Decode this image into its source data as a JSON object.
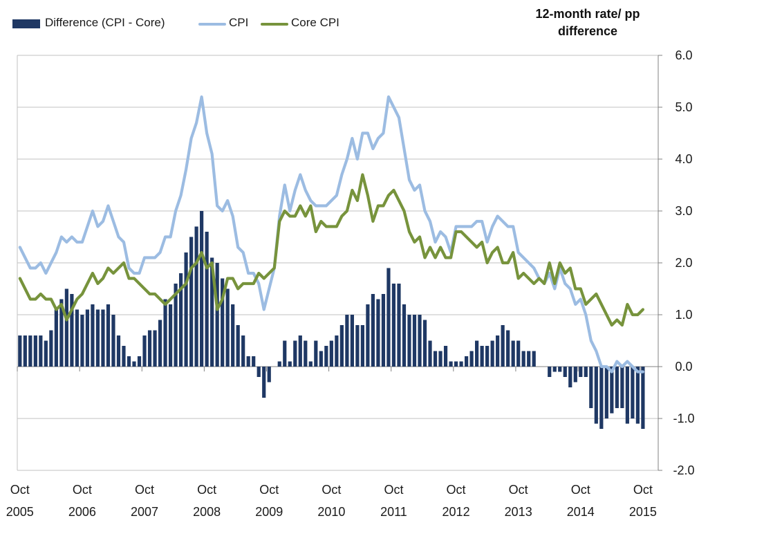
{
  "title": {
    "line1": "12-month rate/ pp",
    "line2": "difference"
  },
  "legend": {
    "items": [
      {
        "label": "Difference (CPI - Core)",
        "type": "bar",
        "color": "#1f3864"
      },
      {
        "label": "CPI",
        "type": "line",
        "color": "#9cbce2"
      },
      {
        "label": "Core CPI",
        "type": "line",
        "color": "#77933c"
      }
    ]
  },
  "colors": {
    "bar": "#1f3864",
    "cpi_line": "#9cbce2",
    "core_line": "#77933c",
    "gridline": "#c2c2c2",
    "axis": "#808080",
    "text": "#1a1a1a"
  },
  "chart_data": {
    "type": "bar",
    "subtype": "combo bar + 2 lines, monthly series Oct 2005 - Oct 2015",
    "title": "12-month rate/ pp difference",
    "xlabel": "",
    "ylabel": "12-month rate/ pp difference",
    "ylim": [
      -2.0,
      6.0
    ],
    "y_ticks": [
      6.0,
      5.0,
      4.0,
      3.0,
      2.0,
      1.0,
      0.0,
      -1.0,
      -2.0
    ],
    "grid": true,
    "legend_position": "top-left",
    "x_start": "Oct 2005",
    "x_end": "Oct 2015",
    "x_tick_labels": [
      {
        "month": "Oct",
        "year": "2005"
      },
      {
        "month": "Oct",
        "year": "2006"
      },
      {
        "month": "Oct",
        "year": "2007"
      },
      {
        "month": "Oct",
        "year": "2008"
      },
      {
        "month": "Oct",
        "year": "2009"
      },
      {
        "month": "Oct",
        "year": "2010"
      },
      {
        "month": "Oct",
        "year": "2011"
      },
      {
        "month": "Oct",
        "year": "2012"
      },
      {
        "month": "Oct",
        "year": "2013"
      },
      {
        "month": "Oct",
        "year": "2014"
      },
      {
        "month": "Oct",
        "year": "2015"
      }
    ],
    "series": [
      {
        "name": "Difference (CPI - Core)",
        "type": "bar",
        "color": "#1f3864",
        "values": [
          0.6,
          0.6,
          0.6,
          0.6,
          0.6,
          0.5,
          0.7,
          1.1,
          1.3,
          1.5,
          1.4,
          1.1,
          1.0,
          1.1,
          1.2,
          1.1,
          1.1,
          1.2,
          1.0,
          0.6,
          0.4,
          0.2,
          0.1,
          0.2,
          0.6,
          0.7,
          0.7,
          0.9,
          1.3,
          1.2,
          1.6,
          1.8,
          2.2,
          2.5,
          2.7,
          3.0,
          2.6,
          2.1,
          2.0,
          1.7,
          1.5,
          1.2,
          0.8,
          0.6,
          0.2,
          0.2,
          -0.2,
          -0.6,
          -0.3,
          0.0,
          0.1,
          0.5,
          0.1,
          0.5,
          0.6,
          0.5,
          0.1,
          0.5,
          0.3,
          0.4,
          0.5,
          0.6,
          0.8,
          1.0,
          1.0,
          0.8,
          0.8,
          1.2,
          1.4,
          1.3,
          1.4,
          1.9,
          1.6,
          1.6,
          1.2,
          1.0,
          1.0,
          1.0,
          0.9,
          0.5,
          0.3,
          0.3,
          0.4,
          0.1,
          0.1,
          0.1,
          0.2,
          0.3,
          0.5,
          0.4,
          0.4,
          0.5,
          0.6,
          0.8,
          0.7,
          0.5,
          0.5,
          0.3,
          0.3,
          0.3,
          0.0,
          0.0,
          -0.2,
          -0.1,
          -0.1,
          -0.2,
          -0.4,
          -0.3,
          -0.2,
          -0.2,
          -0.8,
          -1.1,
          -1.2,
          -1.0,
          -0.9,
          -0.8,
          -0.8,
          -1.1,
          -1.0,
          -1.1,
          -1.2
        ]
      },
      {
        "name": "CPI",
        "type": "line",
        "color": "#9cbce2",
        "values": [
          2.3,
          2.1,
          1.9,
          1.9,
          2.0,
          1.8,
          2.0,
          2.2,
          2.5,
          2.4,
          2.5,
          2.4,
          2.4,
          2.7,
          3.0,
          2.7,
          2.8,
          3.1,
          2.8,
          2.5,
          2.4,
          1.9,
          1.8,
          1.8,
          2.1,
          2.1,
          2.1,
          2.2,
          2.5,
          2.5,
          3.0,
          3.3,
          3.8,
          4.4,
          4.7,
          5.2,
          4.5,
          4.1,
          3.1,
          3.0,
          3.2,
          2.9,
          2.3,
          2.2,
          1.8,
          1.8,
          1.6,
          1.1,
          1.5,
          1.9,
          2.9,
          3.5,
          3.0,
          3.4,
          3.7,
          3.4,
          3.2,
          3.1,
          3.1,
          3.1,
          3.2,
          3.3,
          3.7,
          4.0,
          4.4,
          4.0,
          4.5,
          4.5,
          4.2,
          4.4,
          4.5,
          5.2,
          5.0,
          4.8,
          4.2,
          3.6,
          3.4,
          3.5,
          3.0,
          2.8,
          2.4,
          2.6,
          2.5,
          2.2,
          2.7,
          2.7,
          2.7,
          2.7,
          2.8,
          2.8,
          2.4,
          2.7,
          2.9,
          2.8,
          2.7,
          2.7,
          2.2,
          2.1,
          2.0,
          1.9,
          1.7,
          1.6,
          1.8,
          1.5,
          1.9,
          1.6,
          1.5,
          1.2,
          1.3,
          1.0,
          0.5,
          0.3,
          0.0,
          0.0,
          -0.1,
          0.1,
          0.0,
          0.1,
          0.0,
          -0.1,
          -0.1
        ]
      },
      {
        "name": "Core CPI",
        "type": "line",
        "color": "#77933c",
        "values": [
          1.7,
          1.5,
          1.3,
          1.3,
          1.4,
          1.3,
          1.3,
          1.1,
          1.2,
          0.9,
          1.1,
          1.3,
          1.4,
          1.6,
          1.8,
          1.6,
          1.7,
          1.9,
          1.8,
          1.9,
          2.0,
          1.7,
          1.7,
          1.6,
          1.5,
          1.4,
          1.4,
          1.3,
          1.2,
          1.3,
          1.4,
          1.5,
          1.6,
          1.9,
          2.0,
          2.2,
          1.9,
          2.0,
          1.1,
          1.3,
          1.7,
          1.7,
          1.5,
          1.6,
          1.6,
          1.6,
          1.8,
          1.7,
          1.8,
          1.9,
          2.8,
          3.0,
          2.9,
          2.9,
          3.1,
          2.9,
          3.1,
          2.6,
          2.8,
          2.7,
          2.7,
          2.7,
          2.9,
          3.0,
          3.4,
          3.2,
          3.7,
          3.3,
          2.8,
          3.1,
          3.1,
          3.3,
          3.4,
          3.2,
          3.0,
          2.6,
          2.4,
          2.5,
          2.1,
          2.3,
          2.1,
          2.3,
          2.1,
          2.1,
          2.6,
          2.6,
          2.5,
          2.4,
          2.3,
          2.4,
          2.0,
          2.2,
          2.3,
          2.0,
          2.0,
          2.2,
          1.7,
          1.8,
          1.7,
          1.6,
          1.7,
          1.6,
          2.0,
          1.6,
          2.0,
          1.8,
          1.9,
          1.5,
          1.5,
          1.2,
          1.3,
          1.4,
          1.2,
          1.0,
          0.8,
          0.9,
          0.8,
          1.2,
          1.0,
          1.0,
          1.1
        ]
      }
    ]
  }
}
